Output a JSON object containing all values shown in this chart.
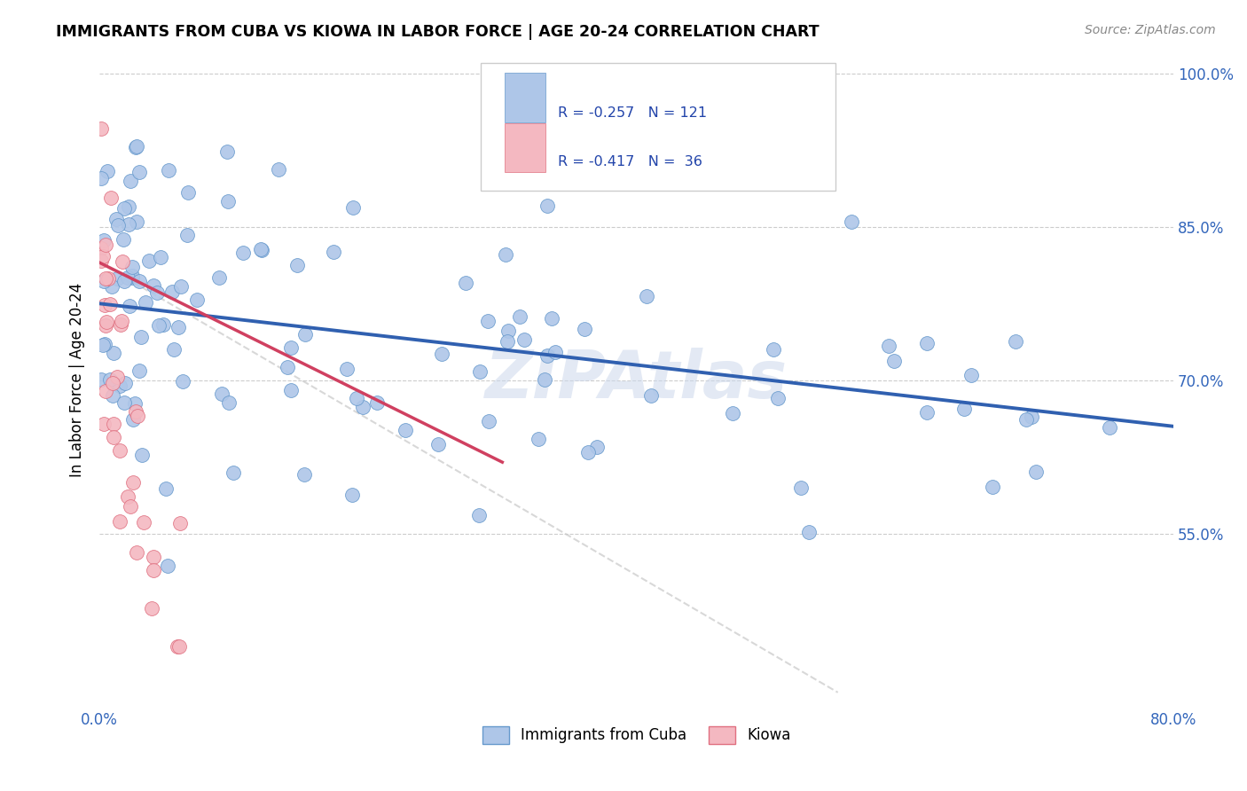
{
  "title": "IMMIGRANTS FROM CUBA VS KIOWA IN LABOR FORCE | AGE 20-24 CORRELATION CHART",
  "source": "Source: ZipAtlas.com",
  "ylabel": "In Labor Force | Age 20-24",
  "x_min": 0.0,
  "x_max": 0.8,
  "y_min": 0.38,
  "y_max": 1.02,
  "x_tick_pos": [
    0.0,
    0.1,
    0.2,
    0.3,
    0.4,
    0.5,
    0.6,
    0.7,
    0.8
  ],
  "x_tick_labels": [
    "0.0%",
    "",
    "",
    "",
    "",
    "",
    "",
    "",
    "80.0%"
  ],
  "y_tick_pos": [
    0.55,
    0.7,
    0.85,
    1.0
  ],
  "y_tick_labels": [
    "55.0%",
    "70.0%",
    "85.0%",
    "100.0%"
  ],
  "legend_r_cuba": "R = -0.257",
  "legend_n_cuba": "N = 121",
  "legend_r_kiowa": "R = -0.417",
  "legend_n_kiowa": "N = 36",
  "color_cuba_fill": "#aec6e8",
  "color_cuba_edge": "#6699cc",
  "color_kiowa_fill": "#f4b8c1",
  "color_kiowa_edge": "#e07080",
  "color_line_cuba": "#3060b0",
  "color_line_kiowa": "#d04060",
  "color_line_dashed": "#c8c8c8",
  "watermark": "ZIPAtlas",
  "cuba_line_x0": 0.0,
  "cuba_line_x1": 0.8,
  "cuba_line_y0": 0.775,
  "cuba_line_y1": 0.655,
  "kiowa_line_x0": 0.0,
  "kiowa_line_x1": 0.3,
  "kiowa_line_y0": 0.815,
  "kiowa_line_y1": 0.62,
  "dash_line_x0": 0.0,
  "dash_line_x1": 0.55,
  "dash_line_y0": 0.815,
  "dash_line_y1": 0.395
}
